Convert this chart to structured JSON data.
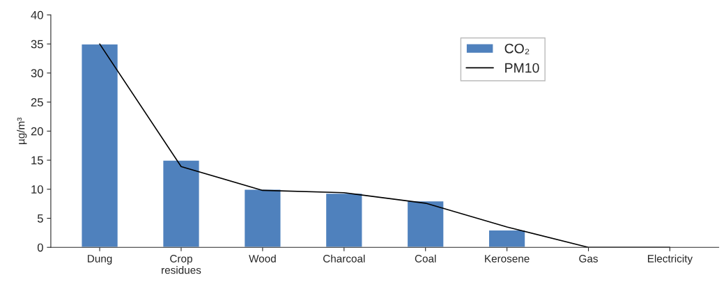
{
  "chart_data": {
    "type": "bar",
    "ylabel": "µg/m³",
    "categories": [
      "Dung",
      "Crop\nresidues",
      "Wood",
      "Charcoal",
      "Coal",
      "Kerosene",
      "Gas",
      "Electricity"
    ],
    "series": [
      {
        "name": "CO₂",
        "color": "#4f81bd",
        "values": [
          35,
          15,
          10,
          9.3,
          8,
          3,
          null,
          null
        ]
      },
      {
        "name": "PM10",
        "type": "line",
        "color": "#000000",
        "values": [
          35,
          13.9,
          9.8,
          9.4,
          7.6,
          3.5,
          0,
          0
        ]
      }
    ],
    "ylim": [
      0,
      40
    ],
    "yticks": [
      0,
      5,
      10,
      15,
      20,
      25,
      30,
      35,
      40
    ],
    "grid": false,
    "legend": "top right"
  }
}
